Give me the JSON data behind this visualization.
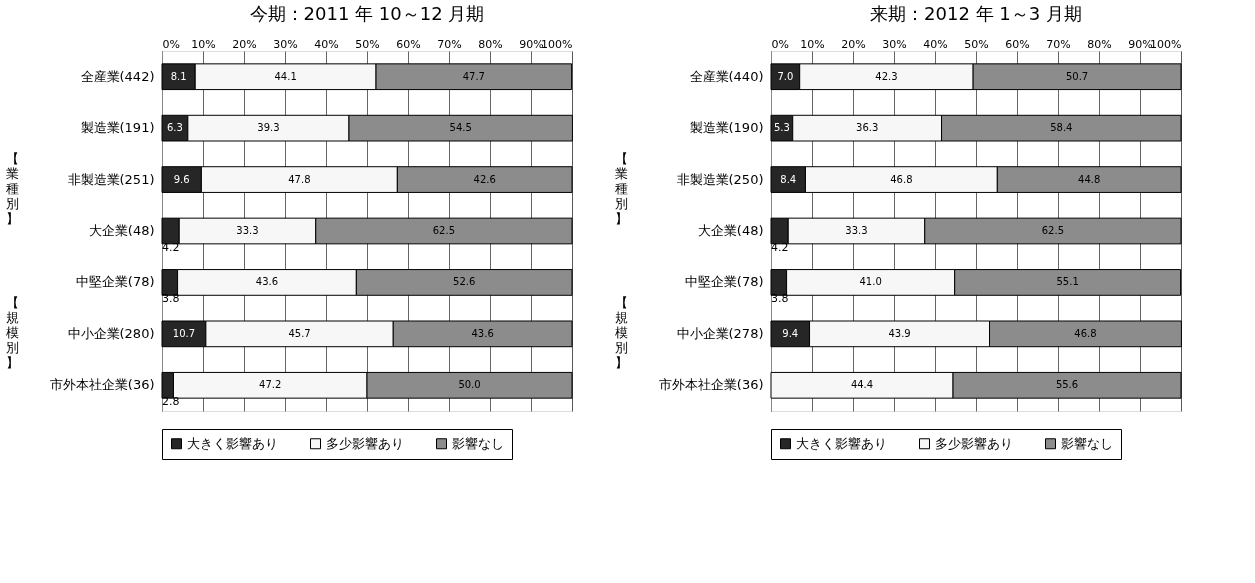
{
  "chart_data": [
    {
      "type": "bar",
      "orientation": "horizontal",
      "stacked": true,
      "title": "今期：2011 年 10～12 月期",
      "categories": [
        "全産業(442)",
        "製造業(191)",
        "非製造業(251)",
        "大企業(48)",
        "中堅企業(78)",
        "中小企業(280)",
        "市外本社企業(36)"
      ],
      "series": [
        {
          "name": "大きく影響あり",
          "color": "#262626",
          "values": [
            8.1,
            6.3,
            9.6,
            4.2,
            3.8,
            10.7,
            2.8
          ],
          "value_labels": [
            "8.1",
            "6.3",
            "9.6",
            "4.2",
            "3.8",
            "10.7",
            "2.8"
          ]
        },
        {
          "name": "多少影響あり",
          "color": "#f7f7f7",
          "values": [
            44.1,
            39.3,
            47.8,
            33.3,
            43.6,
            45.7,
            47.2
          ],
          "value_labels": [
            "44.1",
            "39.3",
            "47.8",
            "33.3",
            "43.6",
            "45.7",
            "47.2"
          ]
        },
        {
          "name": "影響なし",
          "color": "#8c8c8c",
          "values": [
            47.7,
            54.5,
            42.6,
            62.5,
            52.6,
            43.6,
            50.0
          ],
          "value_labels": [
            "47.7",
            "54.5",
            "42.6",
            "62.5",
            "52.6",
            "43.6",
            "50.0"
          ]
        }
      ],
      "xlim": [
        0,
        100
      ],
      "xticks": [
        {
          "value": 0,
          "label": "0%"
        },
        {
          "value": 10,
          "label": "10%"
        },
        {
          "value": 20,
          "label": "20%"
        },
        {
          "value": 30,
          "label": "30%"
        },
        {
          "value": 40,
          "label": "40%"
        },
        {
          "value": 50,
          "label": "50%"
        },
        {
          "value": 60,
          "label": "60%"
        },
        {
          "value": 70,
          "label": "70%"
        },
        {
          "value": 80,
          "label": "80%"
        },
        {
          "value": 90,
          "label": "90%"
        },
        {
          "value": 100,
          "label": "100%"
        }
      ],
      "grid": "x",
      "legend": "bottom",
      "annotations": [
        "【業種別】",
        "【規模別】"
      ]
    },
    {
      "type": "bar",
      "orientation": "horizontal",
      "stacked": true,
      "title": "来期：2012 年 1～3 月期",
      "categories": [
        "全産業(440)",
        "製造業(190)",
        "非製造業(250)",
        "大企業(48)",
        "中堅企業(78)",
        "中小企業(278)",
        "市外本社企業(36)"
      ],
      "series": [
        {
          "name": "大きく影響あり",
          "color": "#262626",
          "values": [
            7.0,
            5.3,
            8.4,
            4.2,
            3.8,
            9.4,
            null
          ],
          "value_labels": [
            "7.0",
            "5.3",
            "8.4",
            "4.2",
            "3.8",
            "9.4",
            null
          ]
        },
        {
          "name": "多少影響あり",
          "color": "#f7f7f7",
          "values": [
            42.3,
            36.3,
            46.8,
            33.3,
            41.0,
            43.9,
            44.4
          ],
          "value_labels": [
            "42.3",
            "36.3",
            "46.8",
            "33.3",
            "41.0",
            "43.9",
            "44.4"
          ]
        },
        {
          "name": "影響なし",
          "color": "#8c8c8c",
          "values": [
            50.7,
            58.4,
            44.8,
            62.5,
            55.1,
            46.8,
            55.6
          ],
          "value_labels": [
            "50.7",
            "58.4",
            "44.8",
            "62.5",
            "55.1",
            "46.8",
            "55.6"
          ]
        }
      ],
      "xlim": [
        0,
        100
      ],
      "xticks": [
        {
          "value": 0,
          "label": "0%"
        },
        {
          "value": 10,
          "label": "10%"
        },
        {
          "value": 20,
          "label": "20%"
        },
        {
          "value": 30,
          "label": "30%"
        },
        {
          "value": 40,
          "label": "40%"
        },
        {
          "value": 50,
          "label": "50%"
        },
        {
          "value": 60,
          "label": "60%"
        },
        {
          "value": 70,
          "label": "70%"
        },
        {
          "value": 80,
          "label": "80%"
        },
        {
          "value": 90,
          "label": "90%"
        },
        {
          "value": 100,
          "label": "100%"
        }
      ],
      "grid": "x",
      "legend": "bottom",
      "annotations": [
        "【業種別】",
        "【規模別】"
      ]
    }
  ]
}
